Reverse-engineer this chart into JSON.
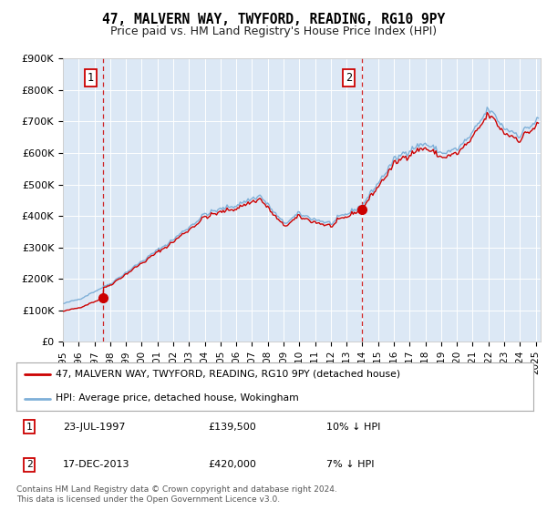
{
  "title": "47, MALVERN WAY, TWYFORD, READING, RG10 9PY",
  "subtitle": "Price paid vs. HM Land Registry's House Price Index (HPI)",
  "ylim": [
    0,
    900000
  ],
  "xlim_start": 1995.0,
  "xlim_end": 2025.3,
  "yticks": [
    0,
    100000,
    200000,
    300000,
    400000,
    500000,
    600000,
    700000,
    800000,
    900000
  ],
  "ytick_labels": [
    "£0",
    "£100K",
    "£200K",
    "£300K",
    "£400K",
    "£500K",
    "£600K",
    "£700K",
    "£800K",
    "£900K"
  ],
  "sale1_x": 1997.55,
  "sale1_y": 139500,
  "sale1_label": "1",
  "sale2_x": 2013.96,
  "sale2_y": 420000,
  "sale2_label": "2",
  "sale_color": "#cc0000",
  "hpi_color": "#7fb0d8",
  "background_color": "#dce8f5",
  "legend_label1": "47, MALVERN WAY, TWYFORD, READING, RG10 9PY (detached house)",
  "legend_label2": "HPI: Average price, detached house, Wokingham",
  "annotation1_date": "23-JUL-1997",
  "annotation1_price": "£139,500",
  "annotation1_hpi": "10% ↓ HPI",
  "annotation2_date": "17-DEC-2013",
  "annotation2_price": "£420,000",
  "annotation2_hpi": "7% ↓ HPI",
  "footer": "Contains HM Land Registry data © Crown copyright and database right 2024.\nThis data is licensed under the Open Government Licence v3.0.",
  "xticks": [
    1995,
    1996,
    1997,
    1998,
    1999,
    2000,
    2001,
    2002,
    2003,
    2004,
    2005,
    2006,
    2007,
    2008,
    2009,
    2010,
    2011,
    2012,
    2013,
    2014,
    2015,
    2016,
    2017,
    2018,
    2019,
    2020,
    2021,
    2022,
    2023,
    2024,
    2025
  ]
}
